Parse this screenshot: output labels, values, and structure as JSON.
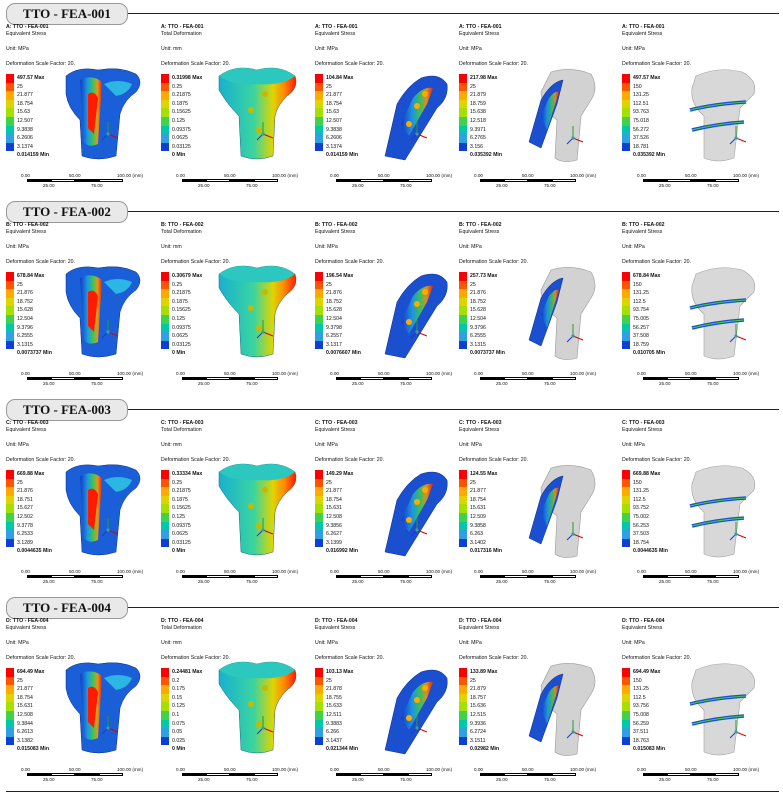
{
  "sections": [
    {
      "title": "TTO - FEA-001",
      "panels": [
        {
          "name": "A: TTO - FEA-001",
          "type": "Equivalent Stress",
          "unit": "Unit: MPa",
          "dsf": "Deformation Scale Factor: 20.",
          "max": "497.57 Max",
          "levels": [
            "25",
            "21.877",
            "18.754",
            "15.63",
            "12.507",
            "9.3838",
            "6.2606",
            "3.1374"
          ],
          "min": "0.014159 Min",
          "scale": [
            "0.00",
            "50.00",
            "100.00 (mm)",
            "25.00",
            "75.00"
          ]
        },
        {
          "name": "A: TTO - FEA-001",
          "type": "Total Deformation",
          "unit": "Unit: mm",
          "dsf": "Deformation Scale Factor: 20.",
          "max": "0.31998 Max",
          "levels": [
            "0.25",
            "0.21875",
            "0.1875",
            "0.15625",
            "0.125",
            "0.09375",
            "0.0625",
            "0.03125"
          ],
          "min": "0 Min",
          "scale": [
            "0.00",
            "50.00",
            "100.00 (mm)",
            "25.00",
            "75.00"
          ]
        },
        {
          "name": "A: TTO - FEA-001",
          "type": "Equivalent Stress",
          "unit": "Unit: MPa",
          "dsf": "Deformation Scale Factor: 20.",
          "max": "104.84 Max",
          "levels": [
            "25",
            "21.877",
            "18.754",
            "15.63",
            "12.507",
            "9.3838",
            "6.2606",
            "3.1374"
          ],
          "min": "0.014159 Min",
          "scale": [
            "0.00",
            "50.00",
            "100.00 (mm)",
            "25.00",
            "75.00"
          ]
        },
        {
          "name": "A: TTO - FEA-001",
          "type": "Equivalent Stress",
          "unit": "Unit: MPa",
          "dsf": "Deformation Scale Factor: 20.",
          "max": "217.98 Max",
          "levels": [
            "25",
            "21.879",
            "18.759",
            "15.638",
            "12.518",
            "9.3971",
            "6.2765",
            "3.156"
          ],
          "min": "0.035392 Min",
          "scale": [
            "0.00",
            "50.00",
            "100.00 (mm)",
            "25.00",
            "75.00"
          ]
        },
        {
          "name": "A: TTO - FEA-001",
          "type": "Equivalent Stress",
          "unit": "Unit: MPa",
          "dsf": "Deformation Scale Factor: 20.",
          "max": "497.57 Max",
          "levels": [
            "150",
            "131.25",
            "112.51",
            "93.763",
            "75.018",
            "56.272",
            "37.526",
            "18.781"
          ],
          "min": "0.035392 Min",
          "scale": [
            "0.00",
            "50.00",
            "100.00 (mm)",
            "25.00",
            "75.00"
          ]
        }
      ]
    },
    {
      "title": "TTO - FEA-002",
      "panels": [
        {
          "name": "B: TTO - FEA-002",
          "type": "Equivalent Stress",
          "unit": "Unit: MPa",
          "dsf": "Deformation Scale Factor: 20.",
          "max": "678.84 Max",
          "levels": [
            "25",
            "21.876",
            "18.752",
            "15.628",
            "12.504",
            "9.3796",
            "6.2555",
            "3.1315"
          ],
          "min": "0.0073737 Min",
          "scale": [
            "0.00",
            "50.00",
            "100.00 (mm)",
            "25.00",
            "75.00"
          ]
        },
        {
          "name": "B: TTO - FEA-002",
          "type": "Total Deformation",
          "unit": "Unit: mm",
          "dsf": "Deformation Scale Factor: 20.",
          "max": "0.30679 Max",
          "levels": [
            "0.25",
            "0.21875",
            "0.1875",
            "0.15625",
            "0.125",
            "0.09375",
            "0.0625",
            "0.03125"
          ],
          "min": "0 Min",
          "scale": [
            "0.00",
            "50.00",
            "100.00 (mm)",
            "25.00",
            "75.00"
          ]
        },
        {
          "name": "B: TTO - FEA-002",
          "type": "Equivalent Stress",
          "unit": "Unit: MPa",
          "dsf": "Deformation Scale Factor: 20.",
          "max": "196.54 Max",
          "levels": [
            "25",
            "21.876",
            "18.752",
            "15.628",
            "12.504",
            "9.3798",
            "6.2557",
            "3.1317"
          ],
          "min": "0.0076607 Min",
          "scale": [
            "0.00",
            "50.00",
            "100.00 (mm)",
            "25.00",
            "75.00"
          ]
        },
        {
          "name": "B: TTO - FEA-002",
          "type": "Equivalent Stress",
          "unit": "Unit: MPa",
          "dsf": "Deformation Scale Factor: 20.",
          "max": "257.73 Max",
          "levels": [
            "25",
            "21.876",
            "18.752",
            "15.628",
            "12.504",
            "9.3796",
            "6.2555",
            "3.1315"
          ],
          "min": "0.0073737 Min",
          "scale": [
            "0.00",
            "50.00",
            "100.00 (mm)",
            "25.00",
            "75.00"
          ]
        },
        {
          "name": "B: TTO - FEA-002",
          "type": "Equivalent Stress",
          "unit": "Unit: MPa",
          "dsf": "Deformation Scale Factor: 20.",
          "max": "678.84 Max",
          "levels": [
            "150",
            "131.25",
            "112.5",
            "93.754",
            "75.005",
            "56.257",
            "37.508",
            "18.759"
          ],
          "min": "0.010705 Min",
          "scale": [
            "0.00",
            "50.00",
            "100.00 (mm)",
            "25.00",
            "75.00"
          ]
        }
      ]
    },
    {
      "title": "TTO - FEA-003",
      "panels": [
        {
          "name": "C: TTO - FEA-003",
          "type": "Equivalent Stress",
          "unit": "Unit: MPa",
          "dsf": "Deformation Scale Factor: 20.",
          "max": "669.88 Max",
          "levels": [
            "25",
            "21.876",
            "18.751",
            "15.627",
            "12.502",
            "9.3778",
            "6.2533",
            "3.1289"
          ],
          "min": "0.0044635 Min",
          "scale": [
            "0.00",
            "50.00",
            "100.00 (mm)",
            "25.00",
            "75.00"
          ]
        },
        {
          "name": "C: TTO - FEA-003",
          "type": "Total Deformation",
          "unit": "Unit: mm",
          "dsf": "Deformation Scale Factor: 20.",
          "max": "0.33334 Max",
          "levels": [
            "0.25",
            "0.21875",
            "0.1875",
            "0.15625",
            "0.125",
            "0.09375",
            "0.0625",
            "0.03125"
          ],
          "min": "0 Min",
          "scale": [
            "0.00",
            "50.00",
            "100.00 (mm)",
            "25.00",
            "75.00"
          ]
        },
        {
          "name": "C: TTO - FEA-003",
          "type": "Equivalent Stress",
          "unit": "Unit: MPa",
          "dsf": "Deformation Scale Factor: 20.",
          "max": "149.29 Max",
          "levels": [
            "25",
            "21.877",
            "18.754",
            "15.631",
            "12.508",
            "9.3856",
            "6.2627",
            "3.1399"
          ],
          "min": "0.016992 Min",
          "scale": [
            "0.00",
            "50.00",
            "100.00 (mm)",
            "25.00",
            "75.00"
          ]
        },
        {
          "name": "C: TTO - FEA-003",
          "type": "Equivalent Stress",
          "unit": "Unit: MPa",
          "dsf": "Deformation Scale Factor: 20.",
          "max": "124.55 Max",
          "levels": [
            "25",
            "21.877",
            "18.754",
            "15.631",
            "12.509",
            "9.3858",
            "6.263",
            "3.1402"
          ],
          "min": "0.017316 Min",
          "scale": [
            "0.00",
            "50.00",
            "100.00 (mm)",
            "25.00",
            "75.00"
          ]
        },
        {
          "name": "C: TTO - FEA-003",
          "type": "Equivalent Stress",
          "unit": "Unit: MPa",
          "dsf": "Deformation Scale Factor: 20.",
          "max": "669.88 Max",
          "levels": [
            "150",
            "131.25",
            "112.5",
            "93.752",
            "75.002",
            "56.253",
            "37.503",
            "18.754"
          ],
          "min": "0.0044635 Min",
          "scale": [
            "0.00",
            "50.00",
            "100.00 (mm)",
            "25.00",
            "75.00"
          ]
        }
      ]
    },
    {
      "title": "TTO - FEA-004",
      "panels": [
        {
          "name": "D: TTO - FEA-004",
          "type": "Equivalent Stress",
          "unit": "Unit: MPa",
          "dsf": "Deformation Scale Factor: 20.",
          "max": "694.49 Max",
          "levels": [
            "25",
            "21.877",
            "18.754",
            "15.631",
            "12.508",
            "9.3844",
            "6.2613",
            "3.1382"
          ],
          "min": "0.015083 Min",
          "scale": [
            "0.00",
            "50.00",
            "100.00 (mm)",
            "25.00",
            "75.00"
          ]
        },
        {
          "name": "D: TTO - FEA-004",
          "type": "Total Deformation",
          "unit": "Unit: mm",
          "dsf": "Deformation Scale Factor: 20.",
          "max": "0.24481 Max",
          "levels": [
            "0.2",
            "0.175",
            "0.15",
            "0.125",
            "0.1",
            "0.075",
            "0.05",
            "0.025"
          ],
          "min": "0 Min",
          "scale": [
            "0.00",
            "50.00",
            "100.00 (mm)",
            "25.00",
            "75.00"
          ]
        },
        {
          "name": "D: TTO - FEA-004",
          "type": "Equivalent Stress",
          "unit": "Unit: MPa",
          "dsf": "Deformation Scale Factor: 20.",
          "max": "103.13 Max",
          "levels": [
            "25",
            "21.878",
            "18.755",
            "15.633",
            "12.511",
            "9.3883",
            "6.266",
            "3.1437"
          ],
          "min": "0.021344 Min",
          "scale": [
            "0.00",
            "50.00",
            "100.00 (mm)",
            "25.00",
            "75.00"
          ]
        },
        {
          "name": "D: TTO - FEA-004",
          "type": "Equivalent Stress",
          "unit": "Unit: MPa",
          "dsf": "Deformation Scale Factor: 20.",
          "max": "133.89 Max",
          "levels": [
            "25",
            "21.879",
            "18.757",
            "15.636",
            "12.515",
            "9.3936",
            "6.2724",
            "3.1511"
          ],
          "min": "0.02982 Min",
          "scale": [
            "0.00",
            "50.00",
            "100.00 (mm)",
            "25.00",
            "75.00"
          ]
        },
        {
          "name": "D: TTO - FEA-004",
          "type": "Equivalent Stress",
          "unit": "Unit: MPa",
          "dsf": "Deformation Scale Factor: 20.",
          "max": "694.49 Max",
          "levels": [
            "150",
            "131.25",
            "112.5",
            "93.756",
            "75.008",
            "56.259",
            "37.511",
            "18.763"
          ],
          "min": "0.015083 Min",
          "scale": [
            "0.00",
            "50.00",
            "100.00 (mm)",
            "25.00",
            "75.00"
          ]
        }
      ]
    }
  ],
  "colors": {
    "legend": [
      "#ff0000",
      "#ff5500",
      "#ffaa00",
      "#e0d400",
      "#a6e000",
      "#3fd24a",
      "#00c8a8",
      "#2f9fe6",
      "#0f3fd0"
    ],
    "bone_gray": "#c9c9c9",
    "rule": "#222222"
  }
}
